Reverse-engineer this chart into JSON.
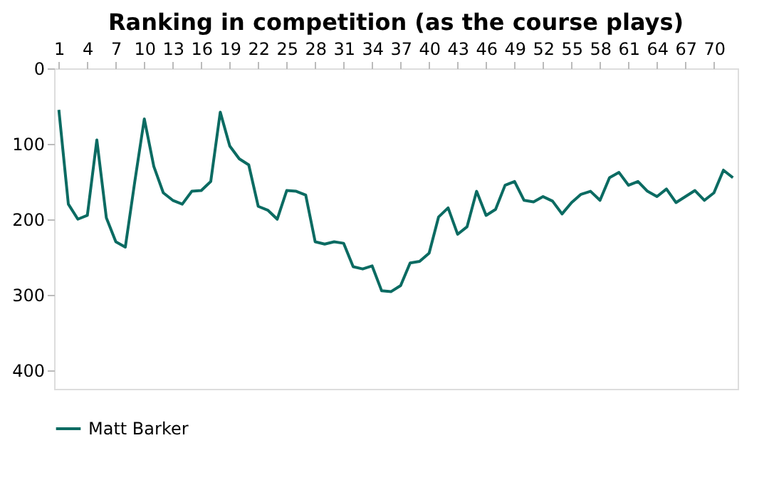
{
  "chart_data": {
    "type": "line",
    "title": "Ranking in competition (as the course plays)",
    "x": [
      1,
      2,
      3,
      4,
      5,
      6,
      7,
      8,
      9,
      10,
      11,
      12,
      13,
      14,
      15,
      16,
      17,
      18,
      19,
      20,
      21,
      22,
      23,
      24,
      25,
      26,
      27,
      28,
      29,
      30,
      31,
      32,
      33,
      34,
      35,
      36,
      37,
      38,
      39,
      40,
      41,
      42,
      43,
      44,
      45,
      46,
      47,
      48,
      49,
      50,
      51,
      52,
      53,
      54,
      55,
      56,
      57,
      58,
      59,
      60,
      61,
      62,
      63,
      64,
      65,
      66,
      67,
      68,
      69,
      70,
      71,
      72
    ],
    "series": [
      {
        "name": "Matt Barker",
        "color": "#0b6b62",
        "values": [
          55,
          180,
          200,
          195,
          95,
          198,
          230,
          237,
          150,
          67,
          130,
          165,
          175,
          180,
          163,
          162,
          150,
          58,
          103,
          120,
          128,
          183,
          188,
          200,
          162,
          163,
          168,
          230,
          233,
          230,
          232,
          263,
          266,
          262,
          295,
          296,
          288,
          258,
          256,
          245,
          197,
          185,
          220,
          210,
          163,
          195,
          187,
          155,
          150,
          175,
          177,
          170,
          176,
          193,
          178,
          167,
          163,
          175,
          145,
          138,
          155,
          150,
          163,
          170,
          160,
          178,
          170,
          162,
          175,
          165,
          135,
          145
        ]
      }
    ],
    "xlim": [
      0.5,
      72.5
    ],
    "xticks": [
      1,
      4,
      7,
      10,
      13,
      16,
      19,
      22,
      25,
      28,
      31,
      34,
      37,
      40,
      43,
      46,
      49,
      52,
      55,
      58,
      61,
      64,
      67,
      70
    ],
    "ylim": [
      425,
      0
    ],
    "yticks": [
      0,
      100,
      200,
      300,
      400
    ],
    "grid": false,
    "legend": "bottom",
    "line_style": "solid",
    "marker": "none"
  }
}
